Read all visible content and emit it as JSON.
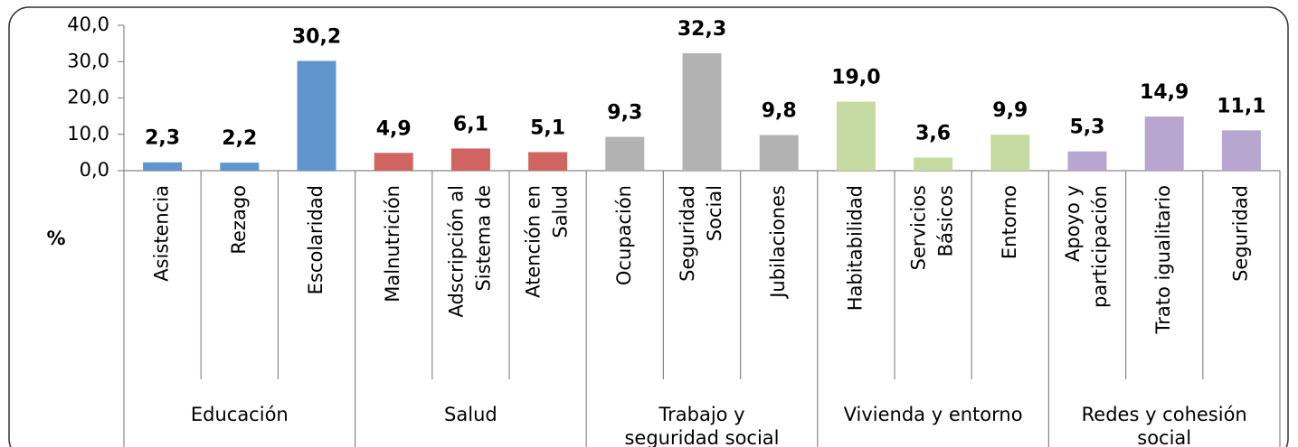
{
  "chart_data": {
    "type": "bar",
    "y_label": "%",
    "ylim": [
      0,
      40
    ],
    "yticks": [
      {
        "value": 0,
        "label": "0,0"
      },
      {
        "value": 10,
        "label": "10,0"
      },
      {
        "value": 20,
        "label": "20,0"
      },
      {
        "value": 30,
        "label": "30,0"
      },
      {
        "value": 40,
        "label": "40,0"
      }
    ],
    "series": [
      {
        "name": "Educación",
        "color": "#6096cd",
        "categories": [
          "Asistencia",
          "Rezago",
          "Escolaridad"
        ],
        "values": [
          2.3,
          2.2,
          30.2
        ],
        "value_labels": [
          "2,3",
          "2,2",
          "30,2"
        ]
      },
      {
        "name": "Salud",
        "color": "#d06461",
        "categories": [
          "Malnutrición",
          "Adscripción al\nSistema de",
          "Atención en\nSalud"
        ],
        "values": [
          4.9,
          6.1,
          5.1
        ],
        "value_labels": [
          "4,9",
          "6,1",
          "5,1"
        ]
      },
      {
        "name": "Trabajo y\nseguridad social",
        "color": "#b2b2b2",
        "categories": [
          "Ocupación",
          "Seguridad\nSocial",
          "Jubilaciones"
        ],
        "values": [
          9.3,
          32.3,
          9.8
        ],
        "value_labels": [
          "9,3",
          "32,3",
          "9,8"
        ]
      },
      {
        "name": "Vivienda y entorno",
        "color": "#c6dba1",
        "categories": [
          "Habitabilidad",
          "Servicios\nBásicos",
          "Entorno"
        ],
        "values": [
          19.0,
          3.6,
          9.9
        ],
        "value_labels": [
          "19,0",
          "3,6",
          "9,9"
        ]
      },
      {
        "name": "Redes y cohesión\nsocial",
        "color": "#b7a6d0",
        "categories": [
          "Apoyo y\nparticipación",
          "Trato igualitario",
          "Seguridad"
        ],
        "values": [
          5.3,
          14.9,
          11.1
        ],
        "value_labels": [
          "5,3",
          "14,9",
          "11,1"
        ]
      }
    ]
  }
}
